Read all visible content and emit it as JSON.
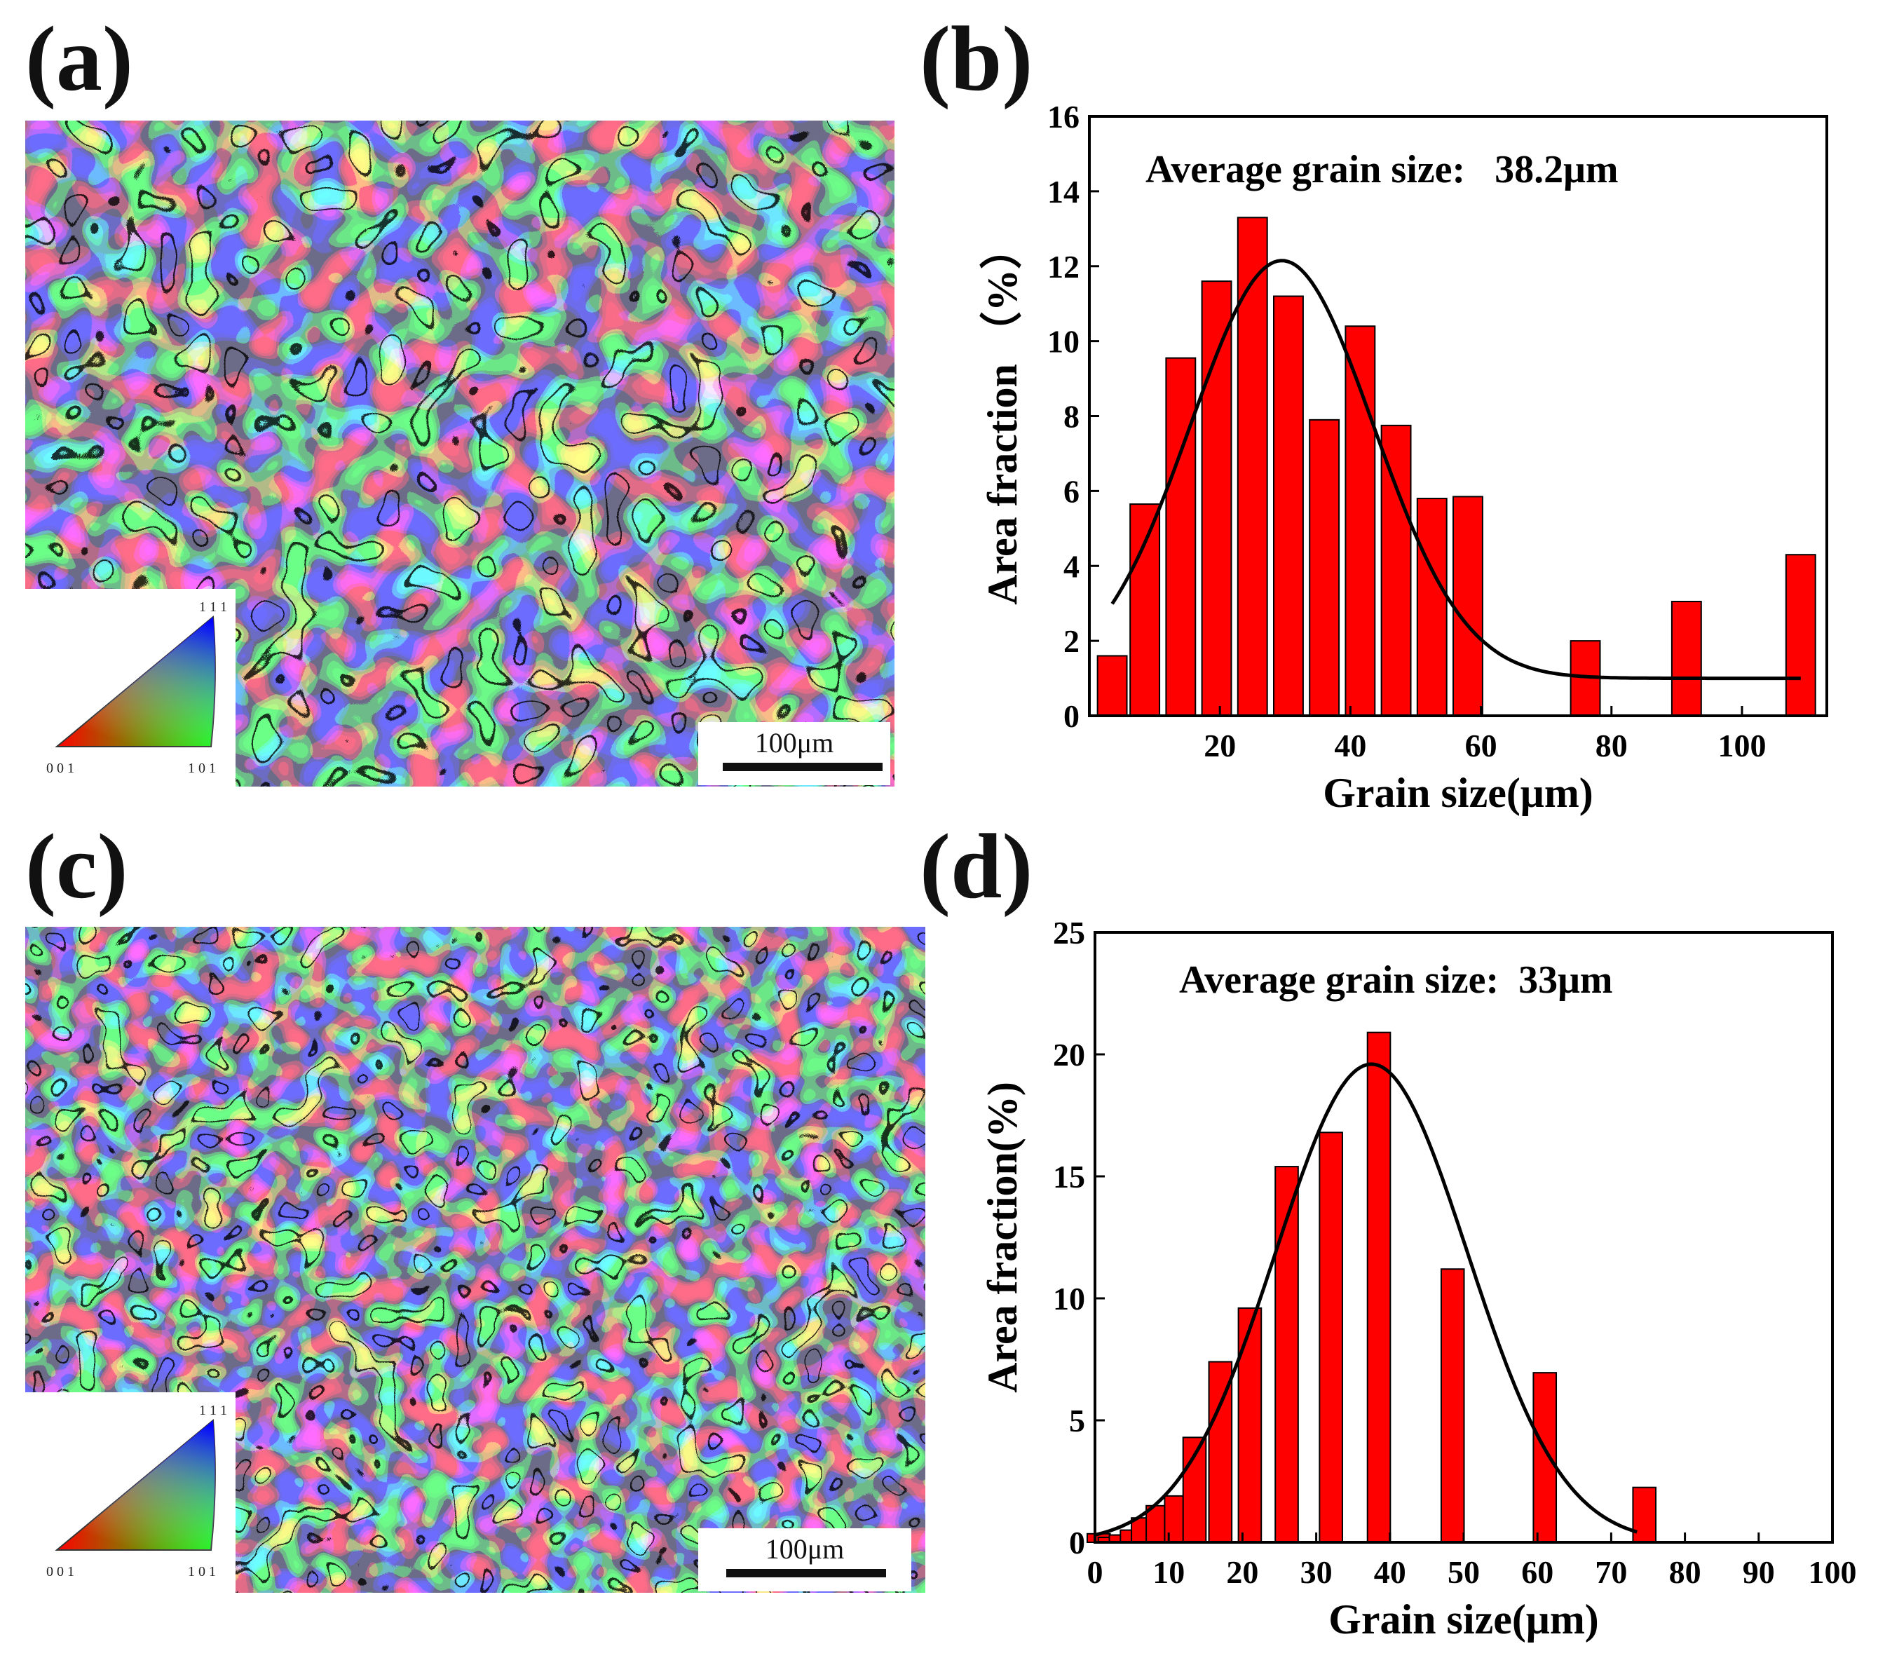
{
  "panels": {
    "a": {
      "label": "(a)",
      "legend": {
        "top": "1 1 1",
        "left": "0 0 1",
        "right": "1 0 1"
      },
      "scale_bar": "100μm"
    },
    "b": {
      "label": "(b)"
    },
    "c": {
      "label": "(c)",
      "legend": {
        "top": "1 1 1",
        "left": "0 0 1",
        "right": "1 0 1"
      },
      "scale_bar": "100μm"
    },
    "d": {
      "label": "(d)"
    }
  },
  "chart_data": [
    {
      "id": "b",
      "type": "bar",
      "annotation": "Average grain size:   38.2μm",
      "xlabel": "Grain size(μm)",
      "ylabel": "Area fraction （%）",
      "xlim": [
        0,
        113
      ],
      "ylim": [
        0,
        16
      ],
      "xticks": [
        20,
        40,
        60,
        80,
        100
      ],
      "yticks": [
        0,
        2,
        4,
        6,
        8,
        10,
        12,
        14,
        16
      ],
      "bar_width": 4.5,
      "bar_color": "#ff0000",
      "x": [
        3.5,
        8.5,
        14,
        19.5,
        25,
        30.5,
        36,
        41.5,
        47,
        52.5,
        58,
        76,
        91.5,
        109
      ],
      "values": [
        1.6,
        5.65,
        9.55,
        11.6,
        13.3,
        11.2,
        7.9,
        10.4,
        7.75,
        5.8,
        5.85,
        2.0,
        3.05,
        4.3
      ],
      "fit": {
        "type": "gaussian",
        "amplitude": 11.15,
        "mean": 29.5,
        "sigma": 14.0,
        "offset": 1.0,
        "x_range": [
          3.5,
          109
        ]
      }
    },
    {
      "id": "d",
      "type": "bar",
      "annotation": "Average grain size:  33μm",
      "xlabel": "Grain size(μm)",
      "ylabel": "Area fraction(%)",
      "xlim": [
        0,
        100
      ],
      "ylim": [
        0,
        25
      ],
      "xticks": [
        0,
        10,
        20,
        30,
        40,
        50,
        60,
        70,
        80,
        90,
        100
      ],
      "yticks": [
        0,
        5,
        10,
        15,
        20,
        25
      ],
      "bar_width": 3.1,
      "bar_color": "#ff0000",
      "x": [
        0.5,
        2,
        3.5,
        5,
        6.5,
        8.5,
        11,
        13.5,
        17,
        21,
        26,
        32,
        38.5,
        48.5,
        61,
        74.5
      ],
      "values": [
        0.35,
        0.2,
        0.3,
        0.5,
        1.0,
        1.5,
        1.9,
        4.3,
        7.4,
        9.6,
        15.4,
        16.8,
        20.9,
        11.2,
        6.95,
        2.25
      ],
      "fit": {
        "type": "gaussian",
        "amplitude": 19.6,
        "mean": 37.5,
        "sigma": 13.0,
        "offset": 0,
        "x_range": [
          0,
          73.5
        ]
      }
    }
  ],
  "colors": {
    "bars": "#ff0000",
    "fit_line": "#000000",
    "axes": "#000000"
  }
}
